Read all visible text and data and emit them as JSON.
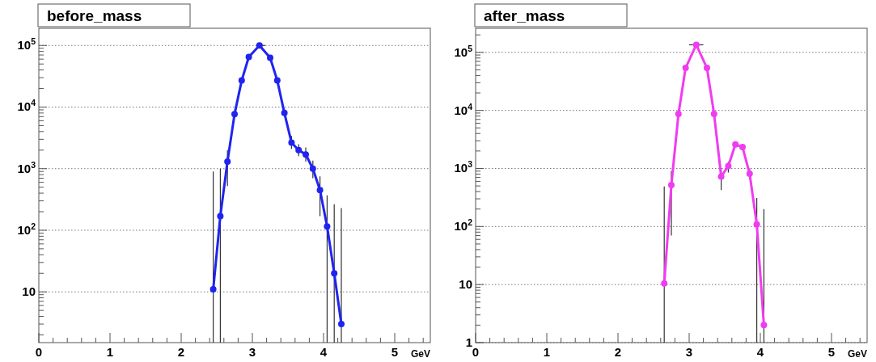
{
  "chart_data": [
    {
      "type": "line",
      "title": "before_mass",
      "xlabel": "GeV",
      "log": "y",
      "grid": "y",
      "marker": "circle",
      "line_style": "solid",
      "xlim": [
        0,
        5.5
      ],
      "ylim": [
        1.5,
        190000
      ],
      "xticks": [
        0,
        {
          "value": 0.2,
          "label": null
        },
        {
          "value": 0.4,
          "label": null
        },
        {
          "value": 0.6,
          "label": null
        },
        {
          "value": 0.8,
          "label": null
        },
        1,
        {
          "value": 1.2,
          "label": null
        },
        {
          "value": 1.4,
          "label": null
        },
        {
          "value": 1.6,
          "label": null
        },
        {
          "value": 1.8,
          "label": null
        },
        2,
        {
          "value": 2.2,
          "label": null
        },
        {
          "value": 2.4,
          "label": null
        },
        {
          "value": 2.6,
          "label": null
        },
        {
          "value": 2.8,
          "label": null
        },
        3,
        {
          "value": 3.2,
          "label": null
        },
        {
          "value": 3.4,
          "label": null
        },
        {
          "value": 3.6,
          "label": null
        },
        {
          "value": 3.8,
          "label": null
        },
        4,
        {
          "value": 4.2,
          "label": null
        },
        {
          "value": 4.4,
          "label": null
        },
        {
          "value": 4.6,
          "label": null
        },
        {
          "value": 4.8,
          "label": null
        },
        5,
        {
          "value": 5.2,
          "label": null
        },
        {
          "value": 5.4,
          "label": null
        }
      ],
      "yticks": [
        {
          "value": 2,
          "label": null
        },
        {
          "value": 3,
          "label": null
        },
        {
          "value": 4,
          "label": null
        },
        {
          "value": 5,
          "label": null
        },
        {
          "value": 6,
          "label": null
        },
        {
          "value": 7,
          "label": null
        },
        {
          "value": 8,
          "label": null
        },
        {
          "value": 9,
          "label": null
        },
        {
          "value": 10,
          "label": "10"
        },
        {
          "value": 20,
          "label": null
        },
        {
          "value": 30,
          "label": null
        },
        {
          "value": 40,
          "label": null
        },
        {
          "value": 50,
          "label": null
        },
        {
          "value": 60,
          "label": null
        },
        {
          "value": 70,
          "label": null
        },
        {
          "value": 80,
          "label": null
        },
        {
          "value": 90,
          "label": null
        },
        {
          "value": 100,
          "label": "10$^{2}$"
        },
        {
          "value": 200,
          "label": null
        },
        {
          "value": 300,
          "label": null
        },
        {
          "value": 400,
          "label": null
        },
        {
          "value": 500,
          "label": null
        },
        {
          "value": 600,
          "label": null
        },
        {
          "value": 700,
          "label": null
        },
        {
          "value": 800,
          "label": null
        },
        {
          "value": 900,
          "label": null
        },
        {
          "value": 1000,
          "label": "10$^{3}$"
        },
        {
          "value": 2000,
          "label": null
        },
        {
          "value": 3000,
          "label": null
        },
        {
          "value": 4000,
          "label": null
        },
        {
          "value": 5000,
          "label": null
        },
        {
          "value": 6000,
          "label": null
        },
        {
          "value": 7000,
          "label": null
        },
        {
          "value": 8000,
          "label": null
        },
        {
          "value": 9000,
          "label": null
        },
        {
          "value": 10000,
          "label": "10$^{4}$"
        },
        {
          "value": 20000,
          "label": null
        },
        {
          "value": 30000,
          "label": null
        },
        {
          "value": 40000,
          "label": null
        },
        {
          "value": 50000,
          "label": null
        },
        {
          "value": 60000,
          "label": null
        },
        {
          "value": 70000,
          "label": null
        },
        {
          "value": 80000,
          "label": null
        },
        {
          "value": 90000,
          "label": null
        },
        {
          "value": 100000,
          "label": "10$^{5}$"
        }
      ],
      "series": [
        {
          "color": "#1f24f0",
          "x": [
            2.45,
            2.55,
            2.65,
            2.75,
            2.85,
            2.95,
            3.1,
            3.25,
            3.35,
            3.45,
            3.55,
            3.65,
            3.75,
            3.85,
            3.95,
            4.05,
            4.15,
            4.25
          ],
          "values": [
            11,
            170,
            1300,
            7700,
            27000,
            65000,
            100000,
            63000,
            27000,
            8000,
            2650,
            2000,
            1700,
            1000,
            450,
            115,
            20,
            3
          ],
          "errors": [
            [
              1.5,
              900
            ],
            [
              1.5,
              1000
            ],
            [
              520,
              2000
            ],
            null,
            null,
            null,
            null,
            null,
            null,
            null,
            [
              2100,
              3400
            ],
            [
              1600,
              2500
            ],
            [
              1300,
              2200
            ],
            [
              700,
              1350
            ],
            [
              170,
              750
            ],
            [
              1.5,
              370
            ],
            [
              1.5,
              265
            ],
            [
              1.5,
              230
            ]
          ],
          "xerrors": [
            null,
            null,
            null,
            null,
            null,
            null,
            [
              3.05,
              3.18
            ],
            null,
            null,
            null,
            null,
            null,
            null,
            null,
            null,
            null,
            null,
            null
          ]
        }
      ]
    },
    {
      "type": "line",
      "title": "after_mass",
      "xlabel": "GeV",
      "log": "y",
      "grid": "y",
      "marker": "circle",
      "line_style": "solid",
      "xlim": [
        0,
        5.5
      ],
      "ylim": [
        1,
        260000
      ],
      "xticks": [
        0,
        {
          "value": 0.2,
          "label": null
        },
        {
          "value": 0.4,
          "label": null
        },
        {
          "value": 0.6,
          "label": null
        },
        {
          "value": 0.8,
          "label": null
        },
        1,
        {
          "value": 1.2,
          "label": null
        },
        {
          "value": 1.4,
          "label": null
        },
        {
          "value": 1.6,
          "label": null
        },
        {
          "value": 1.8,
          "label": null
        },
        2,
        {
          "value": 2.2,
          "label": null
        },
        {
          "value": 2.4,
          "label": null
        },
        {
          "value": 2.6,
          "label": null
        },
        {
          "value": 2.8,
          "label": null
        },
        3,
        {
          "value": 3.2,
          "label": null
        },
        {
          "value": 3.4,
          "label": null
        },
        {
          "value": 3.6,
          "label": null
        },
        {
          "value": 3.8,
          "label": null
        },
        4,
        {
          "value": 4.2,
          "label": null
        },
        {
          "value": 4.4,
          "label": null
        },
        {
          "value": 4.6,
          "label": null
        },
        {
          "value": 4.8,
          "label": null
        },
        5,
        {
          "value": 5.2,
          "label": null
        },
        {
          "value": 5.4,
          "label": null
        }
      ],
      "yticks": [
        {
          "value": 1,
          "label": "1"
        },
        {
          "value": 2,
          "label": null
        },
        {
          "value": 3,
          "label": null
        },
        {
          "value": 4,
          "label": null
        },
        {
          "value": 5,
          "label": null
        },
        {
          "value": 6,
          "label": null
        },
        {
          "value": 7,
          "label": null
        },
        {
          "value": 8,
          "label": null
        },
        {
          "value": 9,
          "label": null
        },
        {
          "value": 10,
          "label": "10"
        },
        {
          "value": 20,
          "label": null
        },
        {
          "value": 30,
          "label": null
        },
        {
          "value": 40,
          "label": null
        },
        {
          "value": 50,
          "label": null
        },
        {
          "value": 60,
          "label": null
        },
        {
          "value": 70,
          "label": null
        },
        {
          "value": 80,
          "label": null
        },
        {
          "value": 90,
          "label": null
        },
        {
          "value": 100,
          "label": "10$^{2}$"
        },
        {
          "value": 200,
          "label": null
        },
        {
          "value": 300,
          "label": null
        },
        {
          "value": 400,
          "label": null
        },
        {
          "value": 500,
          "label": null
        },
        {
          "value": 600,
          "label": null
        },
        {
          "value": 700,
          "label": null
        },
        {
          "value": 800,
          "label": null
        },
        {
          "value": 900,
          "label": null
        },
        {
          "value": 1000,
          "label": "10$^{3}$"
        },
        {
          "value": 2000,
          "label": null
        },
        {
          "value": 3000,
          "label": null
        },
        {
          "value": 4000,
          "label": null
        },
        {
          "value": 5000,
          "label": null
        },
        {
          "value": 6000,
          "label": null
        },
        {
          "value": 7000,
          "label": null
        },
        {
          "value": 8000,
          "label": null
        },
        {
          "value": 9000,
          "label": null
        },
        {
          "value": 10000,
          "label": "10$^{4}$"
        },
        {
          "value": 20000,
          "label": null
        },
        {
          "value": 30000,
          "label": null
        },
        {
          "value": 40000,
          "label": null
        },
        {
          "value": 50000,
          "label": null
        },
        {
          "value": 60000,
          "label": null
        },
        {
          "value": 70000,
          "label": null
        },
        {
          "value": 80000,
          "label": null
        },
        {
          "value": 90000,
          "label": null
        },
        {
          "value": 100000,
          "label": "10$^{5}$"
        },
        {
          "value": 200000,
          "label": null
        }
      ],
      "series": [
        {
          "color": "#f03cf0",
          "x": [
            2.65,
            2.75,
            2.85,
            2.95,
            3.1,
            3.25,
            3.35,
            3.45,
            3.55,
            3.65,
            3.75,
            3.85,
            3.95,
            4.05
          ],
          "values": [
            10.5,
            520,
            8700,
            54000,
            135000,
            54000,
            8700,
            725,
            1100,
            2600,
            2330,
            810,
            109,
            2
          ],
          "errors": [
            [
              1,
              490
            ],
            [
              70,
              900
            ],
            null,
            null,
            null,
            null,
            null,
            [
              425,
              1000
            ],
            [
              850,
              1300
            ],
            null,
            null,
            [
              650,
              1000
            ],
            [
              1,
              310
            ],
            [
              1,
              200
            ]
          ],
          "xerrors": [
            null,
            null,
            null,
            null,
            [
              3.0,
              3.2
            ],
            null,
            null,
            null,
            null,
            null,
            null,
            null,
            null,
            null
          ]
        }
      ]
    }
  ]
}
